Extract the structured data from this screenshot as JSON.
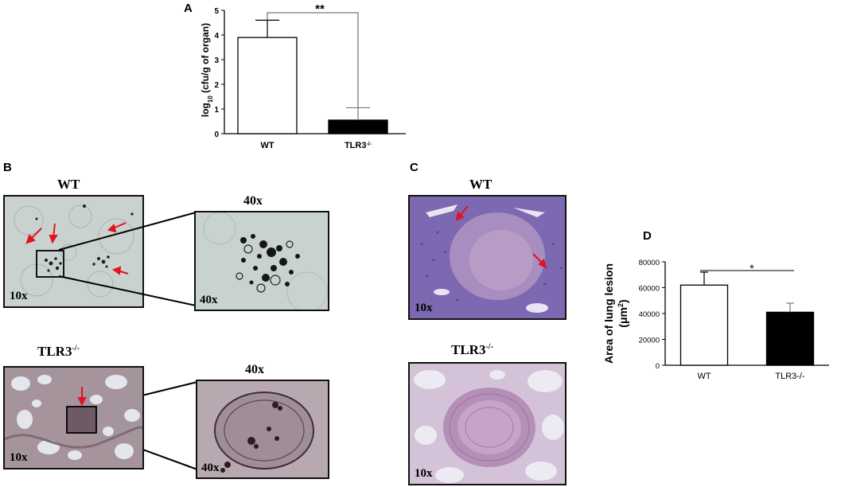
{
  "panels": {
    "a": "A",
    "b": "B",
    "c": "C",
    "d": "D"
  },
  "chart_data": [
    {
      "panel": "A",
      "type": "bar",
      "categories": [
        "WT",
        "TLR3-/-"
      ],
      "category_labels": [
        {
          "base": "WT",
          "sup": ""
        },
        {
          "base": "TLR3",
          "sup": "-/-"
        }
      ],
      "values": [
        3.9,
        0.55
      ],
      "errors": [
        0.7,
        0.5
      ],
      "fills": [
        "#ffffff",
        "#000000"
      ],
      "ylabel": {
        "base": "log",
        "sub": "10",
        "rest": " (cfu/g of organ)"
      },
      "ylim": [
        0,
        5
      ],
      "yticks": [
        "0",
        "1",
        "2",
        "3",
        "4",
        "5"
      ],
      "significance": "**"
    },
    {
      "panel": "D",
      "type": "bar",
      "categories": [
        "WT",
        "TLR3-/-"
      ],
      "values": [
        62000,
        41000
      ],
      "errors": [
        10000,
        7000
      ],
      "fills": [
        "#ffffff",
        "#000000"
      ],
      "ylabel": {
        "base": "Area of lung lesion",
        "line2": "(μm",
        "sup": "2",
        "end": ")"
      },
      "ylim": [
        0,
        80000
      ],
      "yticks": [
        "0",
        "20000",
        "40000",
        "60000",
        "80000"
      ],
      "significance": "*"
    }
  ],
  "histology": {
    "b_wt_title": "WT",
    "b_40x_title_top": "40x",
    "b_tlr_title": {
      "base": "TLR3",
      "sup": "-/-"
    },
    "b_40x_title_bottom": "40x",
    "c_wt_title": "WT",
    "c_tlr_title": {
      "base": "TLR3",
      "sup": "-/-"
    },
    "mag_10x": "10x",
    "mag_40x": "40x"
  },
  "colors": {
    "arrow": "#e0141e",
    "he_stain_wt": "#8a6fb8",
    "he_stain_tlr": "#c9a8cc",
    "silver_wt": "#c9d2d0",
    "silver_tlr": "#a8949c"
  }
}
